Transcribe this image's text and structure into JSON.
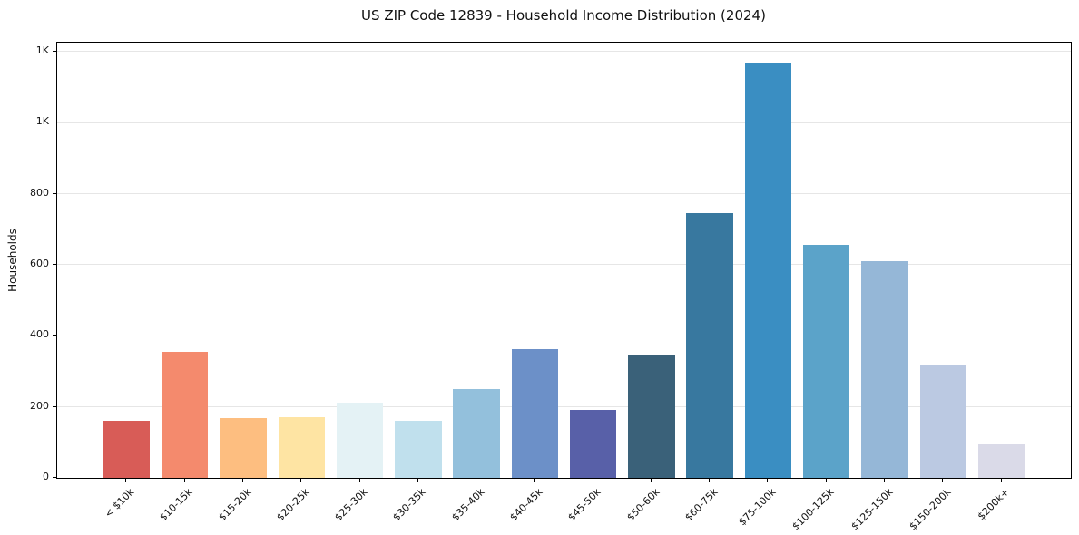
{
  "chart_data": {
    "type": "bar",
    "title": "US ZIP Code 12839 - Household Income Distribution (2024)",
    "xlabel": "",
    "ylabel": "Households",
    "categories": [
      "< $10k",
      "$10-15k",
      "$15-20k",
      "$20-25k",
      "$25-30k",
      "$30-35k",
      "$35-40k",
      "$40-45k",
      "$45-50k",
      "$50-60k",
      "$60-75k",
      "$75-100k",
      "$100-125k",
      "$125-150k",
      "$150-200k",
      "$200k+"
    ],
    "values": [
      160,
      354,
      168,
      172,
      212,
      160,
      249,
      362,
      191,
      344,
      745,
      1168,
      657,
      611,
      316,
      95
    ],
    "bar_colors": [
      "#d85c57",
      "#f48a6d",
      "#fdbe80",
      "#fee4a3",
      "#e4f2f5",
      "#c0e0ed",
      "#93c0dc",
      "#6c90c8",
      "#5860a8",
      "#3a6179",
      "#38789f",
      "#3a8ec2",
      "#5ba3c9",
      "#95b7d7",
      "#bbc9e2",
      "#dadae8"
    ],
    "ylim": [
      0,
      1225
    ],
    "yticks": [
      0,
      200,
      400,
      600,
      800,
      1000,
      1200
    ],
    "ytick_labels": [
      "0",
      "200",
      "400",
      "600",
      "800",
      "1K",
      "1K"
    ],
    "bar_width_ratio": 0.8,
    "grid": "horizontal",
    "grid_color": "#e6e6e6",
    "axis_color": "#000000",
    "text_color": "#111111",
    "background": "#ffffff",
    "legend": "none"
  }
}
